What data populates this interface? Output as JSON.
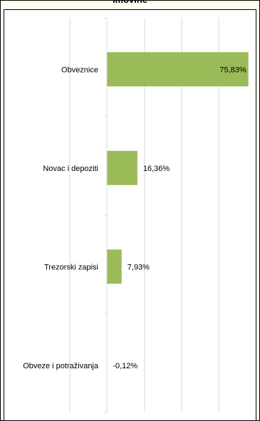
{
  "chart_data": {
    "type": "bar",
    "orientation": "horizontal",
    "title": "imovine",
    "categories": [
      "Obveznice",
      "Novac i depoziti",
      "Trezorski zapisi",
      "Obveze i potraživanja"
    ],
    "values": [
      75.83,
      16.36,
      7.93,
      -0.12
    ],
    "value_labels": [
      "75,83%",
      "16,36%",
      "7,93%",
      "-0,12%"
    ],
    "xlim": [
      0,
      80
    ],
    "grid": true,
    "bar_color": "#9bbb59",
    "grid_color": "#d9d9d9",
    "inside_label_for_largest": true
  }
}
